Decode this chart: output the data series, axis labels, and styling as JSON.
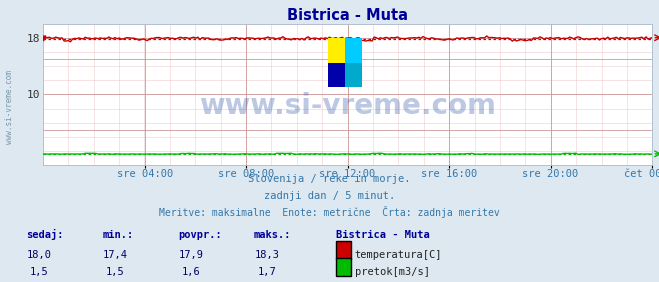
{
  "title": "Bistrica - Muta",
  "title_color": "#000099",
  "bg_color": "#dde8f0",
  "plot_bg_color": "#ffffff",
  "grid_color": "#cc9999",
  "grid_minor_color": "#eecccc",
  "watermark": "www.si-vreme.com",
  "watermark_color": "#3355aa",
  "sidebar_text": "www.si-vreme.com",
  "sidebar_color": "#7799aa",
  "xtick_labels": [
    "sre 04:00",
    "sre 08:00",
    "sre 12:00",
    "sre 16:00",
    "sre 20:00",
    "čet 00:00"
  ],
  "xtick_positions": [
    0.167,
    0.333,
    0.5,
    0.667,
    0.833,
    1.0
  ],
  "ylim": [
    0,
    20
  ],
  "yticks": [
    10,
    18
  ],
  "temp_color": "#cc0000",
  "flow_color": "#00bb00",
  "footer_line1": "Slovenija / reke in morje.",
  "footer_line2": "zadnji dan / 5 minut.",
  "footer_line3": "Meritve: maksimalne  Enote: metrične  Črta: zadnja meritev",
  "footer_color": "#3377aa",
  "table_header_color": "#000099",
  "table_value_color": "#000066",
  "table_headers": [
    "sedaj:",
    "min.:",
    "povpr.:",
    "maks.:"
  ],
  "temp_values": [
    "18,0",
    "17,4",
    "17,9",
    "18,3"
  ],
  "flow_values": [
    "1,5",
    "1,5",
    "1,6",
    "1,7"
  ],
  "legend_title": "Bistrica - Muta",
  "legend_title_color": "#000099",
  "legend_temp_label": "temperatura[C]",
  "legend_flow_label": "pretok[m3/s]",
  "n_points": 288,
  "temp_mean": 17.9,
  "temp_min": 17.4,
  "temp_max": 18.3,
  "flow_mean": 1.6,
  "flow_min": 1.5,
  "flow_max": 1.7
}
